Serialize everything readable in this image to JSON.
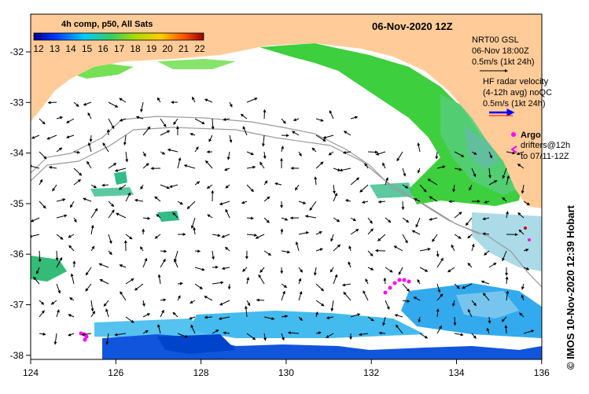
{
  "title": "06-Nov-2020 12Z",
  "colorbar": {
    "label": "4h comp, p50, All Sats",
    "ticks": [
      "12",
      "13",
      "14",
      "15",
      "16",
      "17",
      "18",
      "19",
      "20",
      "21",
      "22"
    ]
  },
  "axes": {
    "x_ticks": [
      "124",
      "126",
      "128",
      "130",
      "132",
      "134",
      "136"
    ],
    "y_ticks": [
      "-32",
      "-33",
      "-34",
      "-35",
      "-36",
      "-37",
      "-38"
    ]
  },
  "legend": {
    "nrt": {
      "line1": "NRT00 GSL",
      "line2": "06-Nov 18:00Z",
      "line3": "0.5m/s (1kt 24h)"
    },
    "hf_radar": {
      "line1": "HF radar velocity",
      "line2": "(4-12h avg) noQC",
      "line3": "0.5m/s (1kt 24h)"
    },
    "argo": {
      "label": "Argo"
    },
    "drifters": {
      "line1": "drifters@12h",
      "line2": "to 07/11-12Z"
    }
  },
  "credit": "© IMOS 10-Nov-2020 12:39 Hobart",
  "colors": {
    "land": "#ffcc99",
    "ocean_no_data": "#ffffff",
    "sst_green": "#33cc33",
    "sst_teal": "#33bb88",
    "sst_cyan": "#33aaee",
    "sst_blue": "#1155dd",
    "argo": "#ff00ff",
    "hf_radar": "#0000ff"
  }
}
